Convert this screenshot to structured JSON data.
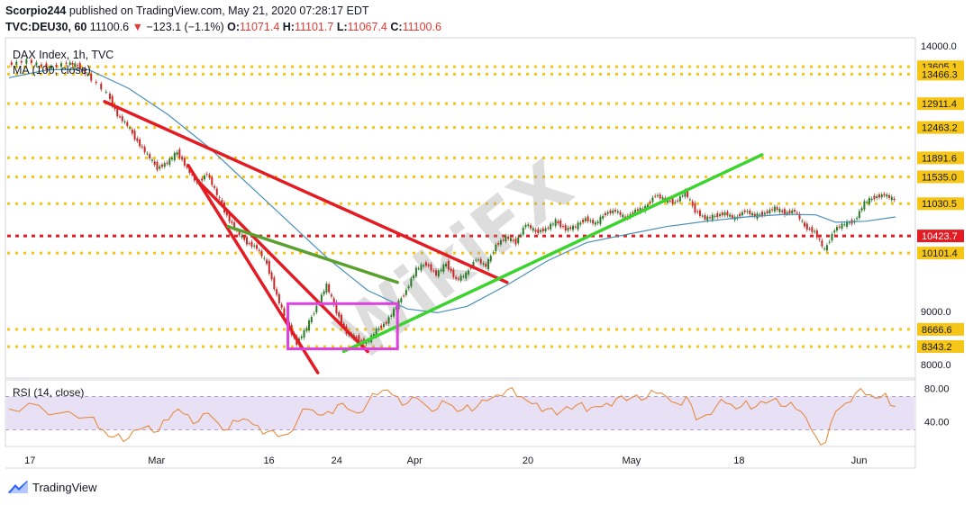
{
  "header": {
    "publisher": "Scorpio244",
    "published_text": "published on TradingView.com, May 21, 2020 07:28:17 EDT",
    "symbol": "TVC:DEU30, 60",
    "last": "11100.6",
    "change": "−123.1 (−1.1%)",
    "o_label": "O:",
    "o": "11071.4",
    "h_label": "H:",
    "h": "11101.7",
    "l_label": "L:",
    "l": "11067.4",
    "c_label": "C:",
    "c": "11100.6"
  },
  "footer": {
    "brand": "TradingView"
  },
  "watermark": "WikiFX",
  "colors": {
    "ma": "#4a90b8",
    "rsi": "#e8822e",
    "rsi_band": "#e8e0f5",
    "support": "#f5c518",
    "red_level": "#e31b23",
    "trend_red": "#e31b23",
    "trend_green": "#3bd42e",
    "trend_olive": "#5aa02e",
    "box": "#e040e0",
    "candle_up": "#2a7a2a",
    "candle_down": "#c62828"
  },
  "chart_data": {
    "type": "candlestick",
    "title": "DAX Index, 1h, TVC",
    "indicator_label": "MA (100, close)",
    "y_ticks": [
      "14000.0",
      "9000.0",
      "8000.0"
    ],
    "price_axis_labels": [
      {
        "value": 13605.1,
        "text": "13605.1"
      },
      {
        "value": 13466.3,
        "text": "13466.3"
      },
      {
        "value": 12911.4,
        "text": "12911.4"
      },
      {
        "value": 12463.2,
        "text": "12463.2"
      },
      {
        "value": 11891.6,
        "text": "11891.6"
      },
      {
        "value": 11535.0,
        "text": "11535.0"
      },
      {
        "value": 11030.5,
        "text": "11030.5"
      },
      {
        "value": 10423.7,
        "text": "10423.7",
        "highlight": true
      },
      {
        "value": 10101.4,
        "text": "10101.4"
      },
      {
        "value": 8666.6,
        "text": "8666.6"
      },
      {
        "value": 8343.2,
        "text": "8343.2"
      }
    ],
    "support_levels": [
      13605.1,
      13466.3,
      12911.4,
      12463.2,
      11891.6,
      11535.0,
      11030.5,
      10101.4,
      8666.6,
      8343.2
    ],
    "red_level": 10423.7,
    "ylim": [
      7750,
      14150
    ],
    "x_ticks": [
      "17",
      "Mar",
      "16",
      "24",
      "Apr",
      "20",
      "May",
      "18",
      "Jun"
    ],
    "price_path": [
      [
        0.0,
        13650
      ],
      [
        1.0,
        13720
      ],
      [
        2.0,
        13580
      ],
      [
        3.0,
        13680
      ],
      [
        3.5,
        13620
      ],
      [
        4.0,
        13450
      ],
      [
        5.0,
        13100
      ],
      [
        5.5,
        12700
      ],
      [
        6.0,
        12500
      ],
      [
        6.5,
        12200
      ],
      [
        7.0,
        11950
      ],
      [
        7.5,
        11700
      ],
      [
        8.0,
        11800
      ],
      [
        8.5,
        12000
      ],
      [
        9.0,
        11700
      ],
      [
        9.5,
        11400
      ],
      [
        10.0,
        11600
      ],
      [
        10.5,
        11200
      ],
      [
        11.0,
        10800
      ],
      [
        11.5,
        10500
      ],
      [
        12.0,
        10300
      ],
      [
        12.5,
        10200
      ],
      [
        13.0,
        9900
      ],
      [
        13.5,
        9300
      ],
      [
        14.0,
        8800
      ],
      [
        14.5,
        8400
      ],
      [
        15.0,
        8700
      ],
      [
        15.5,
        9100
      ],
      [
        16.0,
        9500
      ],
      [
        16.5,
        9000
      ],
      [
        17.0,
        8600
      ],
      [
        17.5,
        8500
      ],
      [
        18.0,
        8400
      ],
      [
        18.5,
        8650
      ],
      [
        19.0,
        8800
      ],
      [
        19.5,
        9100
      ],
      [
        20.0,
        9400
      ],
      [
        20.5,
        9800
      ],
      [
        21.0,
        9900
      ],
      [
        21.5,
        9700
      ],
      [
        22.0,
        9900
      ],
      [
        22.5,
        9600
      ],
      [
        23.0,
        9700
      ],
      [
        23.5,
        10000
      ],
      [
        24.0,
        9850
      ],
      [
        24.5,
        10250
      ],
      [
        25.0,
        10400
      ],
      [
        25.5,
        10300
      ],
      [
        26.0,
        10650
      ],
      [
        26.5,
        10500
      ],
      [
        27.0,
        10550
      ],
      [
        27.5,
        10700
      ],
      [
        28.0,
        10550
      ],
      [
        28.5,
        10600
      ],
      [
        29.0,
        10750
      ],
      [
        29.5,
        10650
      ],
      [
        30.0,
        10850
      ],
      [
        30.5,
        10900
      ],
      [
        31.0,
        10750
      ],
      [
        31.5,
        10900
      ],
      [
        32.0,
        10950
      ],
      [
        32.5,
        11200
      ],
      [
        33.0,
        11100
      ],
      [
        33.5,
        11050
      ],
      [
        34.0,
        11250
      ],
      [
        34.5,
        10900
      ],
      [
        35.0,
        10750
      ],
      [
        35.5,
        10800
      ],
      [
        36.0,
        10850
      ],
      [
        36.5,
        10750
      ],
      [
        37.0,
        10900
      ],
      [
        37.5,
        10800
      ],
      [
        38.0,
        10850
      ],
      [
        38.5,
        10950
      ],
      [
        39.0,
        10850
      ],
      [
        39.5,
        10900
      ],
      [
        40.0,
        10600
      ],
      [
        40.5,
        10500
      ],
      [
        41.0,
        10150
      ],
      [
        41.5,
        10550
      ],
      [
        42.0,
        10650
      ],
      [
        42.5,
        10700
      ],
      [
        43.0,
        11050
      ],
      [
        43.5,
        11150
      ],
      [
        44.0,
        11200
      ],
      [
        44.5,
        11100
      ]
    ],
    "ma_path": [
      [
        0.0,
        13400
      ],
      [
        2.0,
        13550
      ],
      [
        4.0,
        13550
      ],
      [
        6.0,
        13200
      ],
      [
        8.0,
        12700
      ],
      [
        10.0,
        12100
      ],
      [
        12.0,
        11400
      ],
      [
        14.0,
        10700
      ],
      [
        16.0,
        10000
      ],
      [
        18.0,
        9400
      ],
      [
        20.0,
        9050
      ],
      [
        21.5,
        8980
      ],
      [
        23.0,
        9100
      ],
      [
        25.0,
        9500
      ],
      [
        27.0,
        9950
      ],
      [
        29.0,
        10300
      ],
      [
        31.0,
        10450
      ],
      [
        33.0,
        10600
      ],
      [
        35.0,
        10700
      ],
      [
        37.0,
        10780
      ],
      [
        39.0,
        10830
      ],
      [
        40.5,
        10820
      ],
      [
        41.5,
        10680
      ],
      [
        43.0,
        10700
      ],
      [
        44.5,
        10780
      ]
    ],
    "trendlines": [
      {
        "color": "red",
        "from": [
          4.8,
          12950
        ],
        "to": [
          25.0,
          9550
        ]
      },
      {
        "color": "red",
        "from": [
          9.0,
          11750
        ],
        "to": [
          15.5,
          7850
        ]
      },
      {
        "color": "red",
        "from": [
          9.5,
          11450
        ],
        "to": [
          18.0,
          8250
        ]
      },
      {
        "color": "olive",
        "from": [
          11.0,
          10600
        ],
        "to": [
          19.5,
          9550
        ]
      },
      {
        "color": "green",
        "from": [
          16.8,
          8250
        ],
        "to": [
          37.8,
          11950
        ]
      }
    ],
    "box": {
      "x0": 14.0,
      "x1": 19.5,
      "y0": 9150,
      "y1": 8300
    },
    "rsi": {
      "label": "RSI (14, close)",
      "ticks": [
        "80.00",
        "40.00"
      ],
      "band": [
        30,
        70
      ],
      "ylim": [
        10,
        90
      ],
      "path": [
        [
          0,
          55
        ],
        [
          1,
          62
        ],
        [
          2,
          48
        ],
        [
          3,
          52
        ],
        [
          4,
          45
        ],
        [
          4.5,
          32
        ],
        [
          5,
          22
        ],
        [
          5.5,
          25
        ],
        [
          6,
          20
        ],
        [
          6.5,
          30
        ],
        [
          7,
          35
        ],
        [
          7.5,
          28
        ],
        [
          8,
          42
        ],
        [
          8.5,
          55
        ],
        [
          9,
          48
        ],
        [
          9.5,
          40
        ],
        [
          10,
          50
        ],
        [
          10.5,
          38
        ],
        [
          11,
          30
        ],
        [
          11.5,
          40
        ],
        [
          12,
          42
        ],
        [
          12.5,
          35
        ],
        [
          13,
          28
        ],
        [
          13.5,
          22
        ],
        [
          14,
          25
        ],
        [
          14.5,
          42
        ],
        [
          15,
          55
        ],
        [
          15.5,
          48
        ],
        [
          16,
          52
        ],
        [
          16.5,
          60
        ],
        [
          17,
          55
        ],
        [
          17.5,
          50
        ],
        [
          18,
          62
        ],
        [
          18.5,
          72
        ],
        [
          19,
          78
        ],
        [
          19.5,
          70
        ],
        [
          20,
          62
        ],
        [
          20.5,
          68
        ],
        [
          21,
          58
        ],
        [
          21.5,
          55
        ],
        [
          22,
          62
        ],
        [
          22.5,
          52
        ],
        [
          23,
          60
        ],
        [
          23.5,
          58
        ],
        [
          24,
          65
        ],
        [
          24.5,
          72
        ],
        [
          25,
          78
        ],
        [
          25.5,
          70
        ],
        [
          26,
          65
        ],
        [
          26.5,
          62
        ],
        [
          27,
          55
        ],
        [
          27.5,
          48
        ],
        [
          28,
          58
        ],
        [
          28.5,
          60
        ],
        [
          29,
          52
        ],
        [
          29.5,
          58
        ],
        [
          30,
          62
        ],
        [
          30.5,
          68
        ],
        [
          31,
          65
        ],
        [
          31.5,
          72
        ],
        [
          32,
          68
        ],
        [
          32.5,
          74
        ],
        [
          33,
          70
        ],
        [
          33.5,
          62
        ],
        [
          34,
          70
        ],
        [
          34.5,
          42
        ],
        [
          35,
          48
        ],
        [
          35.5,
          58
        ],
        [
          36,
          62
        ],
        [
          36.5,
          55
        ],
        [
          37,
          65
        ],
        [
          37.5,
          58
        ],
        [
          38,
          62
        ],
        [
          38.5,
          68
        ],
        [
          39,
          58
        ],
        [
          39.5,
          55
        ],
        [
          40,
          45
        ],
        [
          40.5,
          22
        ],
        [
          41,
          15
        ],
        [
          41.5,
          52
        ],
        [
          42,
          62
        ],
        [
          42.5,
          74
        ],
        [
          43,
          72
        ],
        [
          43.5,
          68
        ],
        [
          44,
          74
        ],
        [
          44.5,
          58
        ]
      ]
    }
  }
}
